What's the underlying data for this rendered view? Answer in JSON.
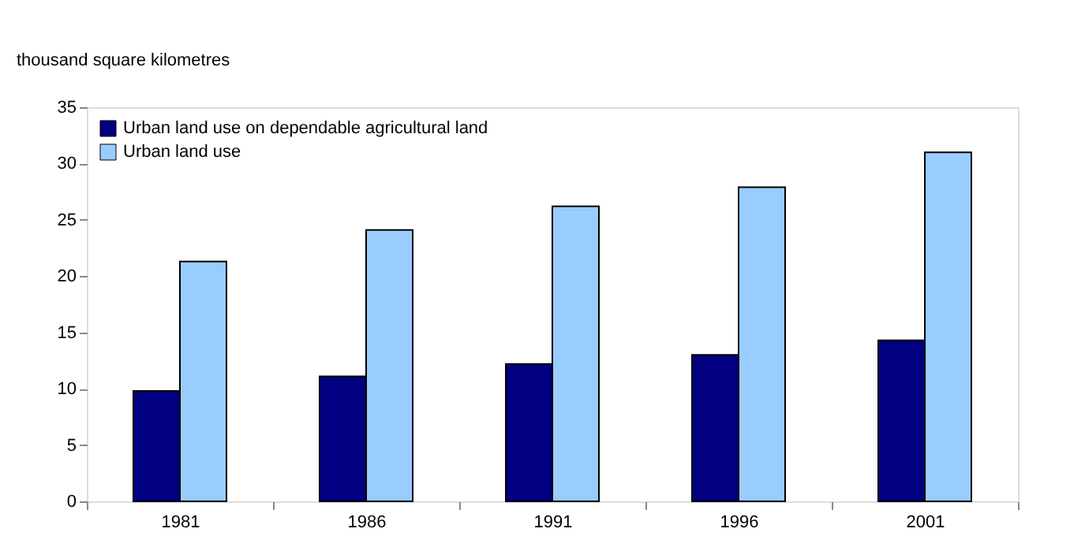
{
  "chart_data": {
    "type": "bar",
    "ylabel": "thousand square kilometres",
    "categories": [
      "1981",
      "1986",
      "1991",
      "1996",
      "2001"
    ],
    "series": [
      {
        "name": "Urban land use on dependable agricultural land",
        "color": "#000080",
        "values": [
          9.8,
          11.1,
          12.2,
          13.0,
          14.3
        ]
      },
      {
        "name": "Urban land use",
        "color": "#99ccff",
        "values": [
          21.3,
          24.1,
          26.2,
          27.9,
          31.0
        ]
      }
    ],
    "ylim": [
      0,
      35
    ],
    "yticks": [
      0,
      5,
      10,
      15,
      20,
      25,
      30,
      35
    ],
    "grid": false,
    "legend": "top left"
  }
}
